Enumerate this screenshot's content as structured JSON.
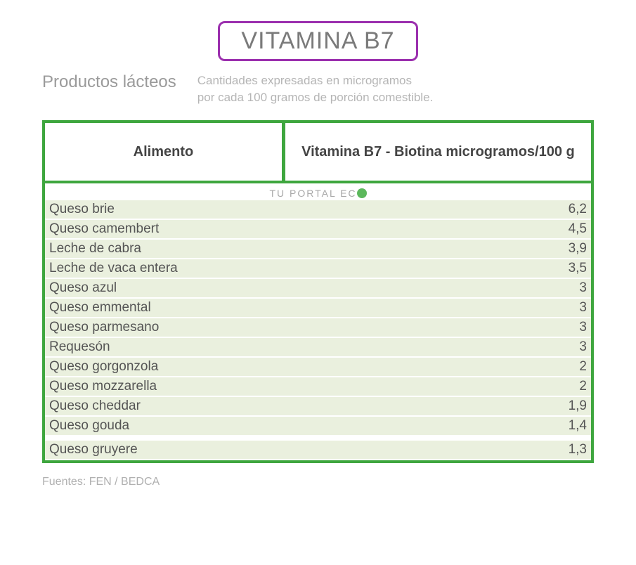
{
  "title": {
    "text": "VITAMINA B7",
    "border_color": "#9b2fae",
    "text_color": "#7a7a7a"
  },
  "category": "Productos lácteos",
  "subtitle_line1": "Cantidades expresadas en microgramos",
  "subtitle_line2": "por cada 100 gramos de porción comestible.",
  "table": {
    "border_color": "#3ea63e",
    "row_stripe_color": "#eaf0de",
    "row_alt_color": "#ffffff",
    "columns": [
      "Alimento",
      "Vitamina B7 - Biotina microgramos/100 g"
    ],
    "watermark": "TU PORTAL EC",
    "watermark_icon_color": "#5cb85c",
    "rows": [
      {
        "food": "Queso brie",
        "value": "6,2"
      },
      {
        "food": "Queso camembert",
        "value": "4,5"
      },
      {
        "food": "Leche de cabra",
        "value": "3,9"
      },
      {
        "food": "Leche de vaca entera",
        "value": "3,5"
      },
      {
        "food": "Queso azul",
        "value": "3"
      },
      {
        "food": "Queso emmental",
        "value": "3"
      },
      {
        "food": "Queso parmesano",
        "value": "3"
      },
      {
        "food": "Requesón",
        "value": "3"
      },
      {
        "food": "Queso gorgonzola",
        "value": "2"
      },
      {
        "food": "Queso mozzarella",
        "value": "2"
      },
      {
        "food": "Queso cheddar",
        "value": "1,9"
      },
      {
        "food": "Queso gouda",
        "value": "1,4"
      },
      {
        "food": "Queso gruyere",
        "value": "1,3"
      }
    ]
  },
  "sources": "Fuentes: FEN / BEDCA"
}
